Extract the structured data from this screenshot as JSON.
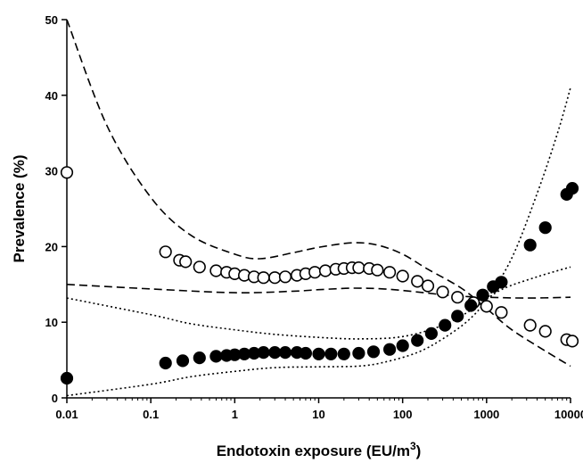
{
  "chart_data": {
    "type": "scatter",
    "xlabel": "Endotoxin exposure (EU/m",
    "xlabel_superscript": "3",
    "xlabel_suffix": ")",
    "ylabel": "Prevalence (%)",
    "x_scale": "log",
    "xlim": [
      0.01,
      10000
    ],
    "ylim": [
      0,
      50
    ],
    "x_ticks": [
      0.01,
      0.1,
      1,
      10,
      100,
      1000,
      10000
    ],
    "x_tick_labels": [
      "0.01",
      "0.1",
      "1",
      "10",
      "100",
      "1000",
      "10000"
    ],
    "y_ticks": [
      0,
      10,
      20,
      30,
      40,
      50
    ],
    "y_tick_labels": [
      "0",
      "10",
      "20",
      "30",
      "40",
      "50"
    ],
    "grid": false,
    "legend": "none",
    "series": [
      {
        "marker": "open-circle",
        "points": [
          [
            0.01,
            29.8
          ],
          [
            0.15,
            19.3
          ],
          [
            0.22,
            18.2
          ],
          [
            0.26,
            18.0
          ],
          [
            0.38,
            17.3
          ],
          [
            0.6,
            16.8
          ],
          [
            0.8,
            16.6
          ],
          [
            1.0,
            16.4
          ],
          [
            1.3,
            16.2
          ],
          [
            1.7,
            16.0
          ],
          [
            2.2,
            15.9
          ],
          [
            3.0,
            15.9
          ],
          [
            4.0,
            16.0
          ],
          [
            5.5,
            16.2
          ],
          [
            7.0,
            16.4
          ],
          [
            9.0,
            16.6
          ],
          [
            12,
            16.8
          ],
          [
            16,
            17.0
          ],
          [
            20,
            17.1
          ],
          [
            25,
            17.2
          ],
          [
            30,
            17.2
          ],
          [
            40,
            17.1
          ],
          [
            50,
            16.9
          ],
          [
            70,
            16.6
          ],
          [
            100,
            16.1
          ],
          [
            150,
            15.4
          ],
          [
            200,
            14.8
          ],
          [
            300,
            14.0
          ],
          [
            450,
            13.3
          ],
          [
            700,
            12.6
          ],
          [
            1000,
            12.1
          ],
          [
            1500,
            11.3
          ],
          [
            3300,
            9.6
          ],
          [
            5000,
            8.8
          ],
          [
            9000,
            7.7
          ],
          [
            10500,
            7.5
          ]
        ]
      },
      {
        "marker": "filled-circle",
        "points": [
          [
            0.01,
            2.6
          ],
          [
            0.15,
            4.6
          ],
          [
            0.24,
            4.9
          ],
          [
            0.38,
            5.3
          ],
          [
            0.6,
            5.5
          ],
          [
            0.8,
            5.6
          ],
          [
            1.0,
            5.7
          ],
          [
            1.3,
            5.8
          ],
          [
            1.7,
            5.9
          ],
          [
            2.2,
            6.0
          ],
          [
            3.0,
            6.0
          ],
          [
            4.0,
            6.0
          ],
          [
            5.5,
            6.0
          ],
          [
            7.0,
            5.9
          ],
          [
            10,
            5.8
          ],
          [
            14,
            5.8
          ],
          [
            20,
            5.8
          ],
          [
            30,
            5.9
          ],
          [
            45,
            6.1
          ],
          [
            70,
            6.4
          ],
          [
            100,
            6.9
          ],
          [
            150,
            7.6
          ],
          [
            220,
            8.5
          ],
          [
            320,
            9.6
          ],
          [
            450,
            10.8
          ],
          [
            650,
            12.2
          ],
          [
            900,
            13.6
          ],
          [
            1200,
            14.7
          ],
          [
            1500,
            15.3
          ],
          [
            3300,
            20.2
          ],
          [
            5000,
            22.5
          ],
          [
            9000,
            26.9
          ],
          [
            10500,
            27.7
          ]
        ]
      }
    ],
    "lines": [
      {
        "style": "dashed",
        "points": [
          [
            0.01,
            50
          ],
          [
            0.03,
            36
          ],
          [
            0.1,
            26.5
          ],
          [
            0.3,
            21.5
          ],
          [
            1,
            19
          ],
          [
            2,
            18.4
          ],
          [
            5,
            19.2
          ],
          [
            10,
            19.9
          ],
          [
            25,
            20.5
          ],
          [
            50,
            20.2
          ],
          [
            100,
            19
          ],
          [
            200,
            17
          ],
          [
            500,
            14.5
          ],
          [
            1000,
            11.8
          ],
          [
            2000,
            9
          ],
          [
            5000,
            6.2
          ],
          [
            10000,
            4.2
          ]
        ]
      },
      {
        "style": "dashed",
        "points": [
          [
            0.01,
            15
          ],
          [
            0.1,
            14.4
          ],
          [
            1,
            13.9
          ],
          [
            5,
            14.1
          ],
          [
            10,
            14.3
          ],
          [
            25,
            14.5
          ],
          [
            60,
            14.4
          ],
          [
            150,
            14
          ],
          [
            400,
            13.5
          ],
          [
            1000,
            13.3
          ],
          [
            3000,
            13.2
          ],
          [
            10000,
            13.3
          ]
        ]
      },
      {
        "style": "dotted",
        "points": [
          [
            0.01,
            13.2
          ],
          [
            0.1,
            11
          ],
          [
            0.3,
            9.8
          ],
          [
            1,
            9
          ],
          [
            3,
            8.4
          ],
          [
            10,
            8
          ],
          [
            30,
            7.8
          ],
          [
            100,
            8.1
          ],
          [
            300,
            9.6
          ],
          [
            700,
            11.8
          ],
          [
            1500,
            14.3
          ],
          [
            4000,
            16
          ],
          [
            10000,
            17.3
          ]
        ]
      },
      {
        "style": "dotted",
        "points": [
          [
            0.01,
            0.3
          ],
          [
            0.1,
            1.8
          ],
          [
            0.3,
            2.8
          ],
          [
            1,
            3.5
          ],
          [
            3,
            4
          ],
          [
            10,
            4.1
          ],
          [
            30,
            4.2
          ],
          [
            60,
            4.7
          ],
          [
            150,
            6
          ],
          [
            300,
            7.8
          ],
          [
            600,
            10.2
          ],
          [
            1000,
            13
          ],
          [
            2000,
            18.5
          ],
          [
            4000,
            27
          ],
          [
            7000,
            35
          ],
          [
            10000,
            41
          ]
        ]
      }
    ]
  }
}
